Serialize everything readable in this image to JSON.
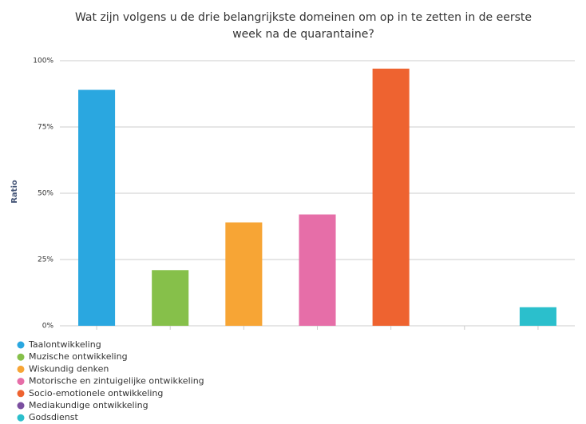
{
  "chart_data": {
    "type": "bar",
    "title": [
      "Wat zijn volgens u de drie belangrijkste domeinen om op in te zetten in de eerste",
      "week na de quarantaine?"
    ],
    "y_label": "Ratio",
    "categories": [
      "Taalontwikkeling",
      "Muzische ontwikkeling",
      "Wiskundig denken",
      "Motorische en zintuigelijke ontwikkeling",
      "Socio-emotionele ontwikkeling",
      "Mediakundige ontwikkeling",
      "Godsdienst"
    ],
    "values": [
      89,
      21,
      39,
      42,
      97,
      0,
      7
    ],
    "colors": [
      "#2aa7e0",
      "#86c04a",
      "#f7a535",
      "#e66ea8",
      "#ee6330",
      "#7b4fa0",
      "#2bbfcc"
    ],
    "ylim": [
      0,
      100
    ],
    "yticks": [
      {
        "value": 0,
        "label": "0%"
      },
      {
        "value": 25,
        "label": "25%"
      },
      {
        "value": 50,
        "label": "50%"
      },
      {
        "value": 75,
        "label": "75%"
      },
      {
        "value": 100,
        "label": "100%"
      }
    ],
    "grid": true
  }
}
